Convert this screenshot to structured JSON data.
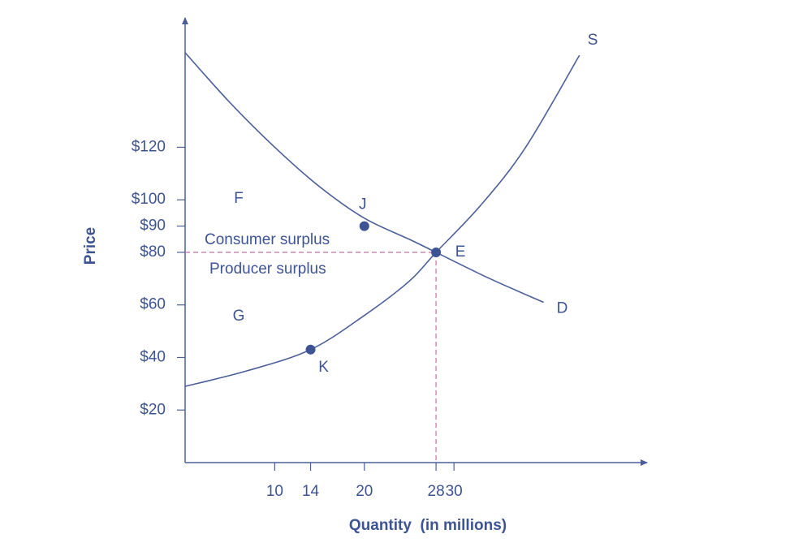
{
  "chart_data": {
    "type": "line",
    "xlabel": "Quantity  (in millions)",
    "ylabel": "Price",
    "xlim": [
      0,
      51
    ],
    "ylim": [
      0,
      168
    ],
    "xticks": [
      10,
      14,
      20,
      28,
      30
    ],
    "yticks": [
      {
        "value": 20,
        "label": "$20"
      },
      {
        "value": 40,
        "label": "$40"
      },
      {
        "value": 60,
        "label": "$60"
      },
      {
        "value": 80,
        "label": "$80"
      },
      {
        "value": 90,
        "label": "$90"
      },
      {
        "value": 100,
        "label": "$100"
      },
      {
        "value": 120,
        "label": "$120"
      }
    ],
    "series": [
      {
        "name": "D",
        "color": "#4a5f9a",
        "x": [
          0,
          5,
          10,
          15,
          20,
          25,
          28,
          34,
          40
        ],
        "values": [
          156,
          137,
          120,
          105,
          93,
          85,
          80,
          70,
          61
        ]
      },
      {
        "name": "S",
        "color": "#4a5f9a",
        "x": [
          0,
          7,
          14,
          20,
          25,
          28,
          33,
          38,
          44
        ],
        "values": [
          29,
          35,
          43,
          56,
          69,
          80,
          98,
          120,
          155
        ]
      }
    ],
    "points": [
      {
        "label": "J",
        "x": 20,
        "y": 90
      },
      {
        "label": "K",
        "x": 14,
        "y": 43
      },
      {
        "label": "E",
        "x": 28,
        "y": 80
      }
    ],
    "annotations": [
      "F",
      "G",
      "Consumer surplus",
      "Producer surplus"
    ],
    "guide_color": "#c87ca8"
  }
}
